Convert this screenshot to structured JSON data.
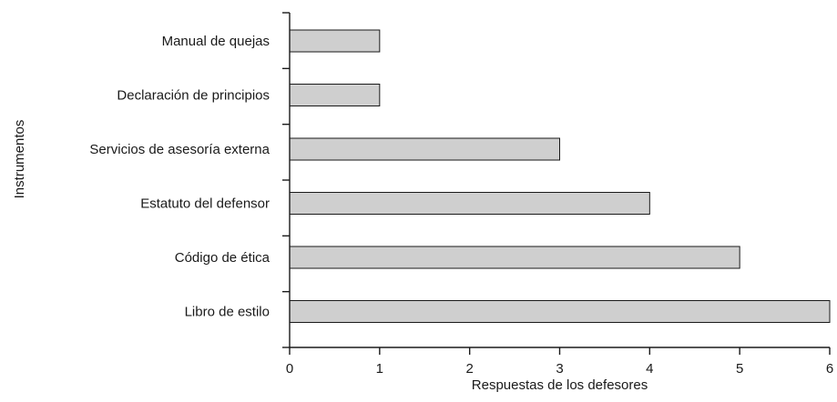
{
  "chart_data": {
    "type": "bar",
    "orientation": "horizontal",
    "categories": [
      "Manual de quejas",
      "Declaración de principios",
      "Servicios de asesoría externa",
      "Estatuto del defensor",
      "Código de ética",
      "Libro de estilo"
    ],
    "values": [
      1,
      1,
      3,
      4,
      5,
      6
    ],
    "xlabel": "Respuestas de los defesores",
    "ylabel": "Instrumentos",
    "xlim": [
      0,
      6
    ],
    "xticks": [
      "0",
      "1",
      "2",
      "3",
      "4",
      "5",
      "6"
    ],
    "grid": false,
    "legend": "none",
    "colors": {
      "bar_fill": "#cfcfcf",
      "bar_stroke": "#1a1a1a"
    }
  }
}
